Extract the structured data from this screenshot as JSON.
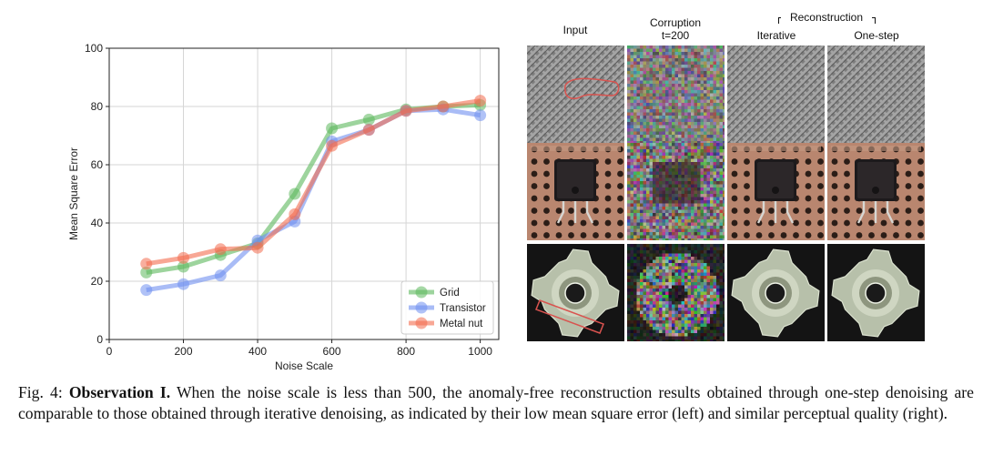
{
  "chart_data": {
    "type": "line",
    "xlabel": "Noise Scale",
    "ylabel": "Mean Square Error",
    "xlim": [
      0,
      1050
    ],
    "ylim": [
      0,
      100
    ],
    "xticks": [
      "0",
      "200",
      "400",
      "600",
      "800",
      "1000"
    ],
    "yticks": [
      "0",
      "20",
      "40",
      "60",
      "80",
      "100"
    ],
    "grid": true,
    "legend_position": "lower-right",
    "x": [
      100,
      200,
      300,
      400,
      500,
      600,
      700,
      800,
      900,
      1000
    ],
    "series": [
      {
        "name": "Grid",
        "color": "#5cb85c",
        "values": [
          23,
          25,
          29,
          33,
          50,
          72.5,
          75.5,
          79,
          80,
          80.5
        ]
      },
      {
        "name": "Transistor",
        "color": "#6f8ff0",
        "values": [
          17,
          19,
          22,
          34,
          40.5,
          68,
          72,
          78.5,
          79,
          77
        ]
      },
      {
        "name": "Metal nut",
        "color": "#f36c4f",
        "values": [
          26,
          28,
          31,
          31.5,
          43,
          66.5,
          72,
          78.5,
          80,
          82
        ]
      }
    ]
  },
  "panels": {
    "col_input": "Input",
    "col_corruption_line1": "Corruption",
    "col_corruption_line2": "t=200",
    "col_reconstruction": "Reconstruction",
    "col_iterative": "Iterative",
    "col_onestep": "One-step"
  },
  "caption": {
    "label": "Fig. 4:",
    "bold": "Observation I.",
    "text": "When the noise scale is less than 500, the anomaly-free reconstruction results obtained through one-step denoising are comparable to those obtained through iterative denoising, as indicated by their low mean square error (left) and similar perceptual quality (right)."
  },
  "colors": {
    "grid_bg": "#7d7d7d",
    "pcb_bg": "#b9866f",
    "nut_bg": "#141414",
    "anomaly_outline": "#d9534f"
  }
}
